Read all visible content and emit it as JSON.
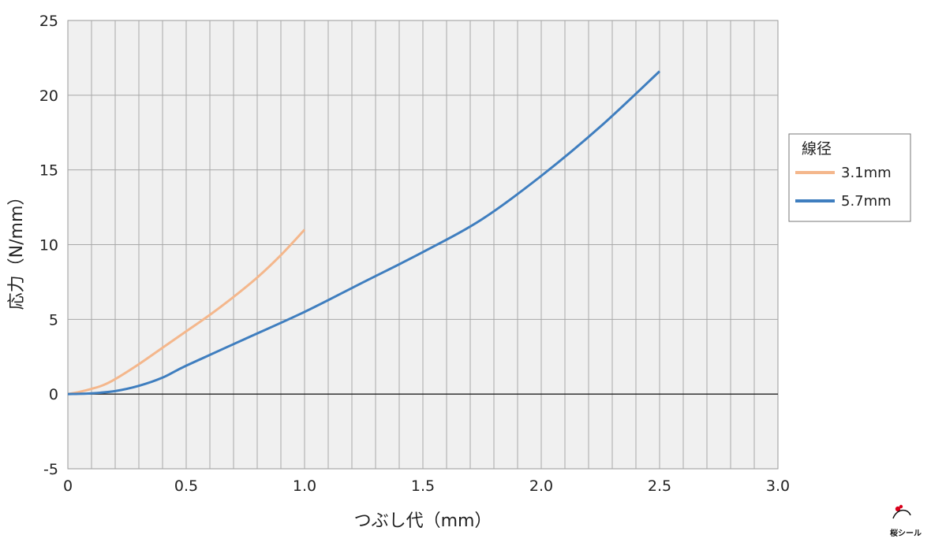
{
  "chart_data": {
    "type": "line",
    "xlabel": "つぶし代（mm）",
    "ylabel": "応力（N/mm）",
    "xlim": [
      0,
      3.0
    ],
    "ylim": [
      -5,
      25
    ],
    "x_ticks": [
      0,
      0.5,
      1.0,
      1.5,
      2.0,
      2.5,
      3.0
    ],
    "x_tick_labels": [
      "0",
      "0.5",
      "1.0",
      "1.5",
      "2.0",
      "2.5",
      "3.0"
    ],
    "y_ticks": [
      -5,
      0,
      5,
      10,
      15,
      20,
      25
    ],
    "y_tick_labels": [
      "-5",
      "0",
      "5",
      "10",
      "15",
      "20",
      "25"
    ],
    "x_minor_step": 0.1,
    "grid": true,
    "legend": {
      "title": "線径",
      "placement": "right"
    },
    "series": [
      {
        "name": "3.1mm",
        "color": "#f4b78c",
        "points": [
          [
            0,
            0
          ],
          [
            0.05,
            0.15
          ],
          [
            0.1,
            0.35
          ],
          [
            0.15,
            0.6
          ],
          [
            0.2,
            1.0
          ],
          [
            0.3,
            2.0
          ],
          [
            0.4,
            3.1
          ],
          [
            0.5,
            4.2
          ],
          [
            0.6,
            5.3
          ],
          [
            0.7,
            6.5
          ],
          [
            0.8,
            7.8
          ],
          [
            0.9,
            9.3
          ],
          [
            1.0,
            11.0
          ]
        ]
      },
      {
        "name": "5.7mm",
        "color": "#3f7ebf",
        "points": [
          [
            0,
            0
          ],
          [
            0.1,
            0.05
          ],
          [
            0.2,
            0.2
          ],
          [
            0.3,
            0.55
          ],
          [
            0.4,
            1.1
          ],
          [
            0.5,
            1.9
          ],
          [
            0.75,
            3.7
          ],
          [
            1.0,
            5.5
          ],
          [
            1.25,
            7.5
          ],
          [
            1.5,
            9.5
          ],
          [
            1.75,
            11.7
          ],
          [
            2.0,
            14.6
          ],
          [
            2.25,
            17.9
          ],
          [
            2.5,
            21.6
          ]
        ]
      }
    ]
  },
  "logo": {
    "text": "桜シール",
    "icon": "cherry-blossom-logo-icon"
  }
}
